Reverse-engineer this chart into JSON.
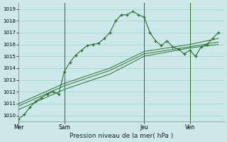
{
  "title": "Pression niveau de la mer( hPa )",
  "background_color": "#cce8ea",
  "grid_color": "#aacccc",
  "line_color": "#2d6e2d",
  "ylim": [
    1009.5,
    1019.5
  ],
  "yticks": [
    1010,
    1011,
    1012,
    1013,
    1014,
    1015,
    1016,
    1017,
    1018,
    1019
  ],
  "day_labels": [
    "Mer",
    "Sam",
    "Jeu",
    "Ven"
  ],
  "day_positions": [
    0,
    8,
    22,
    30
  ],
  "xlim": [
    0,
    36
  ],
  "series1_x": [
    0,
    1,
    2,
    3,
    4,
    5,
    6,
    7,
    8,
    9,
    10,
    11,
    12,
    13,
    14,
    15,
    16,
    17,
    18,
    19,
    20,
    21,
    22,
    23,
    24,
    25,
    26,
    27,
    28,
    29,
    30,
    31,
    32,
    33,
    34,
    35
  ],
  "series1_y": [
    1009.7,
    1010.1,
    1010.7,
    1011.2,
    1011.5,
    1011.8,
    1012.0,
    1011.8,
    1013.7,
    1014.5,
    1015.1,
    1015.5,
    1015.9,
    1016.0,
    1016.1,
    1016.5,
    1017.0,
    1018.0,
    1018.5,
    1018.5,
    1018.8,
    1018.5,
    1018.3,
    1017.0,
    1016.3,
    1015.9,
    1016.3,
    1015.8,
    1015.6,
    1015.2,
    1015.5,
    1015.0,
    1015.8,
    1016.0,
    1016.5,
    1017.0
  ],
  "series2_x": [
    0,
    8,
    16,
    22,
    30,
    35
  ],
  "series2_y": [
    1010.5,
    1012.2,
    1013.5,
    1015.0,
    1015.7,
    1016.0
  ],
  "series3_x": [
    0,
    8,
    16,
    22,
    30,
    35
  ],
  "series3_y": [
    1010.8,
    1012.5,
    1013.8,
    1015.2,
    1015.8,
    1016.2
  ],
  "series4_x": [
    0,
    8,
    16,
    22,
    30,
    35
  ],
  "series4_y": [
    1011.0,
    1012.7,
    1014.0,
    1015.4,
    1016.0,
    1016.5
  ],
  "vline_positions": [
    8,
    22,
    30
  ],
  "figsize": [
    3.2,
    2.0
  ],
  "dpi": 100
}
